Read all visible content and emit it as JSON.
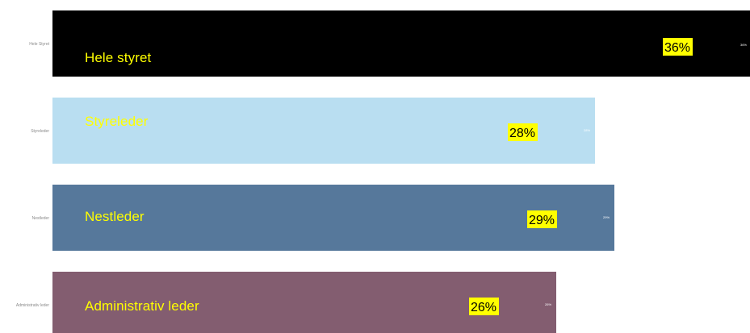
{
  "chart_data": {
    "type": "bar",
    "orientation": "horizontal",
    "categories": [
      "Hele Styret",
      "Styreleder",
      "Nestleder",
      "Administrativ leder"
    ],
    "bar_titles": [
      "Hele styret",
      "Styreleder",
      "Nestleder",
      "Administrativ leder"
    ],
    "values": [
      36,
      28,
      29,
      26
    ],
    "value_labels": [
      "36%",
      "28%",
      "29%",
      "26%"
    ],
    "small_value_labels": [
      "36%",
      "28%",
      "29%",
      "26%"
    ],
    "colors": [
      "#000000",
      "#b9def1",
      "#56789b",
      "#835d70"
    ],
    "small_label_colors": [
      "#ffffff",
      "#ffffff",
      "#ffffff",
      "#ffffff"
    ],
    "xlim": [
      0,
      36
    ],
    "grid": false,
    "legend": "none",
    "title": "",
    "xlabel": "",
    "ylabel": ""
  }
}
